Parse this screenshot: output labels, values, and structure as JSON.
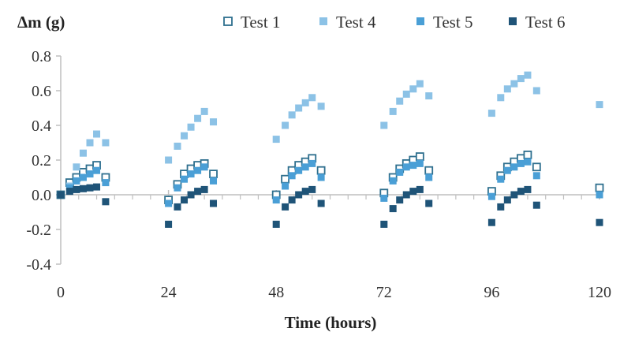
{
  "chart_data": {
    "type": "scatter",
    "title": "",
    "xlabel": "Time (hours)",
    "ylabel": "Δm (g)",
    "xlim": [
      0,
      120
    ],
    "ylim": [
      -0.4,
      0.8
    ],
    "xticks": [
      0,
      24,
      48,
      72,
      96,
      120
    ],
    "yticks": [
      -0.4,
      -0.2,
      0.0,
      0.2,
      0.4,
      0.6,
      0.8
    ],
    "xtick_labels": [
      "0",
      "24",
      "48",
      "72",
      "96",
      "120"
    ],
    "ytick_labels": [
      "-0.4",
      "-0.2",
      "0.0",
      "0.2",
      "0.4",
      "0.6",
      "0.8"
    ],
    "grid": false,
    "legend_position": "top-right",
    "series": [
      {
        "name": "Test 1",
        "marker": "hollow-square",
        "color": "#2e6f8e",
        "x": [
          0,
          2,
          3.5,
          5,
          6.5,
          8,
          10,
          24,
          26,
          27.5,
          29,
          30.5,
          32,
          34,
          48,
          50,
          51.5,
          53,
          54.5,
          56,
          58,
          72,
          74,
          75.5,
          77,
          78.5,
          80,
          82,
          96,
          98,
          99.5,
          101,
          102.5,
          104,
          106,
          120
        ],
        "y": [
          0,
          0.07,
          0.1,
          0.13,
          0.15,
          0.17,
          0.1,
          -0.03,
          0.06,
          0.12,
          0.15,
          0.17,
          0.18,
          0.12,
          0.0,
          0.09,
          0.14,
          0.17,
          0.19,
          0.21,
          0.14,
          0.01,
          0.1,
          0.15,
          0.18,
          0.2,
          0.22,
          0.14,
          0.02,
          0.11,
          0.16,
          0.19,
          0.21,
          0.23,
          0.16,
          0.04
        ]
      },
      {
        "name": "Test 4",
        "marker": "filled-square",
        "color": "#8cc2e6",
        "x": [
          2,
          3.5,
          5,
          6.5,
          8,
          10,
          24,
          26,
          27.5,
          29,
          30.5,
          32,
          34,
          48,
          50,
          51.5,
          53,
          54.5,
          56,
          58,
          72,
          74,
          75.5,
          77,
          78.5,
          80,
          82,
          96,
          98,
          99.5,
          101,
          102.5,
          104,
          106,
          120
        ],
        "y": [
          0.05,
          0.16,
          0.24,
          0.3,
          0.35,
          0.3,
          0.2,
          0.28,
          0.34,
          0.39,
          0.44,
          0.48,
          0.42,
          0.32,
          0.4,
          0.46,
          0.5,
          0.53,
          0.56,
          0.51,
          0.4,
          0.48,
          0.54,
          0.58,
          0.61,
          0.64,
          0.57,
          0.47,
          0.56,
          0.61,
          0.64,
          0.67,
          0.69,
          0.6,
          0.52
        ]
      },
      {
        "name": "Test 5",
        "marker": "filled-square",
        "color": "#4a9fd6",
        "x": [
          2,
          3.5,
          5,
          6.5,
          8,
          10,
          24,
          26,
          27.5,
          29,
          30.5,
          32,
          34,
          48,
          50,
          51.5,
          53,
          54.5,
          56,
          58,
          72,
          74,
          75.5,
          77,
          78.5,
          80,
          82,
          96,
          98,
          99.5,
          101,
          102.5,
          104,
          106,
          120
        ],
        "y": [
          0.04,
          0.08,
          0.1,
          0.12,
          0.14,
          0.07,
          -0.05,
          0.04,
          0.09,
          0.12,
          0.14,
          0.16,
          0.08,
          -0.03,
          0.05,
          0.11,
          0.14,
          0.16,
          0.18,
          0.1,
          -0.02,
          0.08,
          0.13,
          0.16,
          0.17,
          0.18,
          0.1,
          -0.01,
          0.09,
          0.14,
          0.16,
          0.18,
          0.19,
          0.11,
          0.0
        ]
      },
      {
        "name": "Test 6",
        "marker": "filled-square",
        "color": "#1f5478",
        "x": [
          0,
          2,
          3.5,
          5,
          6.5,
          8,
          10,
          24,
          26,
          27.5,
          29,
          30.5,
          32,
          34,
          48,
          50,
          51.5,
          53,
          54.5,
          56,
          58,
          72,
          74,
          75.5,
          77,
          78.5,
          80,
          82,
          96,
          98,
          99.5,
          101,
          102.5,
          104,
          106,
          120
        ],
        "y": [
          0,
          0.02,
          0.03,
          0.035,
          0.04,
          0.045,
          -0.04,
          -0.17,
          -0.07,
          -0.03,
          0.0,
          0.02,
          0.03,
          -0.05,
          -0.17,
          -0.07,
          -0.03,
          0.0,
          0.02,
          0.03,
          -0.05,
          -0.17,
          -0.08,
          -0.03,
          0.0,
          0.02,
          0.03,
          -0.05,
          -0.16,
          -0.07,
          -0.03,
          0.0,
          0.02,
          0.03,
          -0.06,
          -0.16
        ]
      }
    ]
  }
}
